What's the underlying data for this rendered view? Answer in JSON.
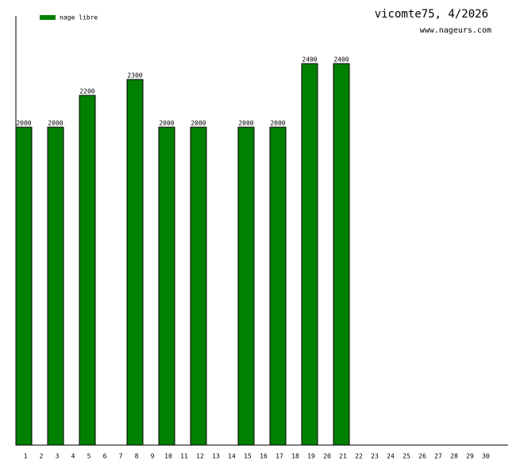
{
  "chart_data": {
    "type": "bar",
    "title": "vicomte75, 4/2026",
    "subtitle": "www.nageurs.com",
    "categories": [
      "1",
      "2",
      "3",
      "4",
      "5",
      "6",
      "7",
      "8",
      "9",
      "10",
      "11",
      "12",
      "13",
      "14",
      "15",
      "16",
      "17",
      "18",
      "19",
      "20",
      "21",
      "22",
      "23",
      "24",
      "25",
      "26",
      "27",
      "28",
      "29",
      "30"
    ],
    "series": [
      {
        "name": "nage libre",
        "color": "#008000",
        "values": [
          2000,
          null,
          2000,
          null,
          2200,
          null,
          null,
          2300,
          null,
          2000,
          null,
          2000,
          null,
          null,
          2000,
          null,
          2000,
          null,
          2400,
          null,
          2400,
          null,
          null,
          null,
          null,
          null,
          null,
          null,
          null,
          null
        ]
      }
    ],
    "ylim": [
      0,
      2700
    ],
    "legend": "top-left"
  }
}
